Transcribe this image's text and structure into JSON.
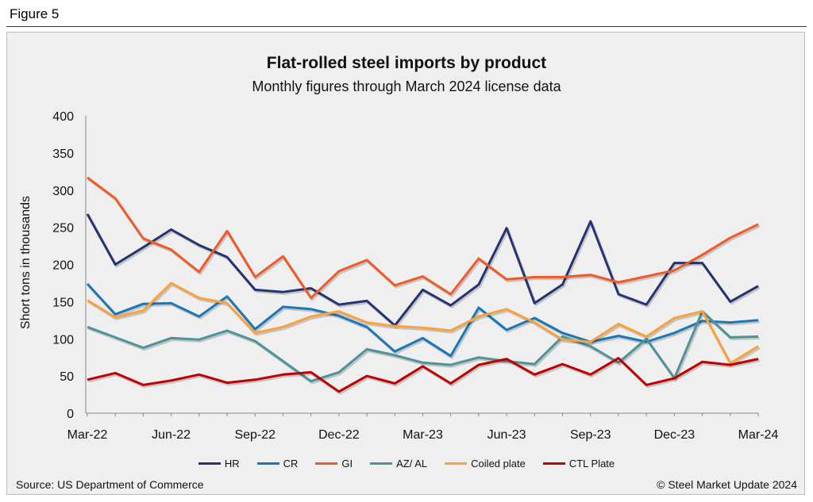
{
  "figure_label": "Figure 5",
  "source": "Source: US Department of Commerce",
  "copyright": "© Steel Market Update 2024",
  "chart_data": {
    "type": "line",
    "title": "Flat-rolled steel imports by product",
    "subtitle": "Monthly figures through March 2024 license data",
    "xlabel": "",
    "ylabel": "Short tons in thousands",
    "ylim": [
      0,
      400
    ],
    "yticks": [
      "0",
      "50",
      "100",
      "150",
      "200",
      "250",
      "300",
      "350",
      "400"
    ],
    "x": [
      "Mar-22",
      "Apr-22",
      "May-22",
      "Jun-22",
      "Jul-22",
      "Aug-22",
      "Sep-22",
      "Oct-22",
      "Nov-22",
      "Dec-22",
      "Jan-23",
      "Feb-23",
      "Mar-23",
      "Apr-23",
      "May-23",
      "Jun-23",
      "Jul-23",
      "Aug-23",
      "Sep-23",
      "Oct-23",
      "Nov-23",
      "Dec-23",
      "Jan-24",
      "Feb-24",
      "Mar-24"
    ],
    "xtick_labels": [
      "Mar-22",
      "Jun-22",
      "Sep-22",
      "Dec-22",
      "Mar-23",
      "Jun-23",
      "Sep-23",
      "Dec-23",
      "Mar-24"
    ],
    "grid": false,
    "legend_position": "bottom",
    "series": [
      {
        "name": "HR",
        "color": "#253372",
        "values": [
          268,
          200,
          223,
          247,
          226,
          210,
          166,
          163,
          168,
          146,
          151,
          118,
          166,
          145,
          173,
          249,
          148,
          173,
          258,
          160,
          146,
          202,
          202,
          150,
          171
        ]
      },
      {
        "name": "CR",
        "color": "#1a78b8",
        "values": [
          174,
          133,
          147,
          148,
          130,
          157,
          113,
          143,
          140,
          131,
          116,
          83,
          101,
          77,
          142,
          112,
          128,
          108,
          96,
          104,
          96,
          108,
          124,
          122,
          125
        ]
      },
      {
        "name": "GI",
        "color": "#f05a28",
        "values": [
          317,
          289,
          235,
          220,
          190,
          245,
          183,
          211,
          155,
          191,
          206,
          172,
          184,
          160,
          208,
          180,
          183,
          183,
          186,
          176,
          184,
          192,
          213,
          236,
          254
        ]
      },
      {
        "name": "AZ/ AL",
        "color": "#4e9399",
        "values": [
          116,
          102,
          88,
          101,
          99,
          111,
          97,
          70,
          43,
          55,
          86,
          78,
          68,
          65,
          75,
          70,
          66,
          103,
          90,
          68,
          100,
          47,
          137,
          102,
          103
        ]
      },
      {
        "name": "Coiled plate",
        "color": "#f9a23c",
        "values": [
          152,
          129,
          138,
          175,
          155,
          148,
          108,
          116,
          130,
          137,
          122,
          117,
          115,
          111,
          130,
          140,
          122,
          99,
          96,
          120,
          103,
          128,
          137,
          67,
          90
        ]
      },
      {
        "name": "CTL Plate",
        "color": "#c00000",
        "values": [
          45,
          54,
          38,
          44,
          52,
          41,
          45,
          52,
          55,
          29,
          50,
          40,
          63,
          40,
          65,
          73,
          52,
          66,
          52,
          74,
          38,
          47,
          69,
          65,
          73
        ]
      }
    ]
  }
}
